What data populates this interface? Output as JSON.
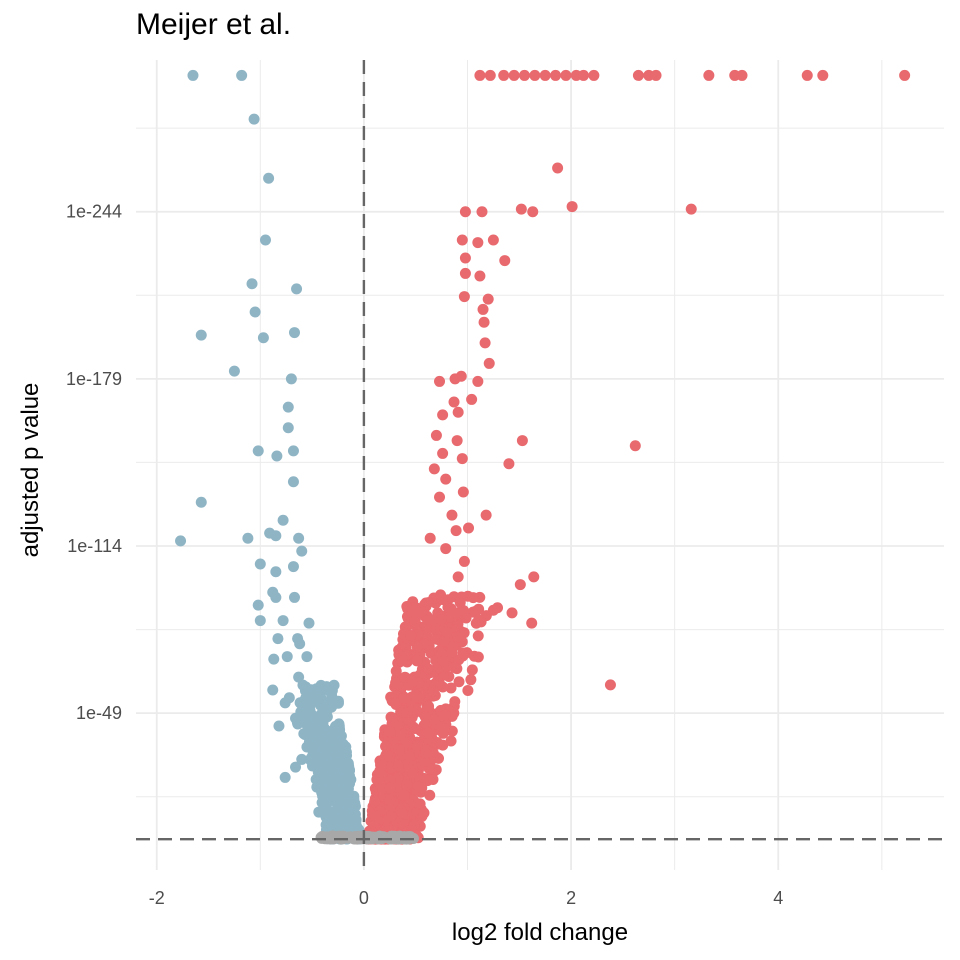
{
  "chart_data": {
    "type": "scatter",
    "title": "Meijer et al.",
    "xlabel": "log2 fold change",
    "ylabel": "adjusted p value",
    "xlim": [
      -2.2,
      5.6
    ],
    "ylim_neglog10": [
      -12,
      303
    ],
    "x_ticks": [
      -2,
      0,
      2,
      4
    ],
    "x_tick_labels": [
      "-2",
      "0",
      "2",
      "4"
    ],
    "y_ticks_neglog10": [
      49,
      114,
      179,
      244
    ],
    "y_tick_labels": [
      "1e-49",
      "1e-114",
      "1e-179",
      "1e-244"
    ],
    "grid": true,
    "reference_lines": {
      "vline_x": 0,
      "hline_neglog10": 0,
      "style": "dashed",
      "color": "#666666"
    },
    "colors": {
      "down": "#8fb5c5",
      "up": "#e8696e",
      "ns": "#a8a8a8"
    },
    "series": [
      {
        "group": "down",
        "points": [
          [
            -1.65,
            297
          ],
          [
            -1.18,
            297
          ],
          [
            -1.06,
            280
          ],
          [
            -0.92,
            257
          ],
          [
            -0.95,
            233
          ],
          [
            -1.08,
            216
          ],
          [
            -0.65,
            214
          ],
          [
            -1.05,
            205
          ],
          [
            -1.57,
            196
          ],
          [
            -0.67,
            197
          ],
          [
            -0.97,
            195
          ],
          [
            -1.25,
            182
          ],
          [
            -0.7,
            179
          ],
          [
            -0.73,
            168
          ],
          [
            -0.73,
            160
          ],
          [
            -1.02,
            151
          ],
          [
            -0.84,
            149
          ],
          [
            -0.68,
            151
          ],
          [
            -0.68,
            139
          ],
          [
            -1.57,
            131
          ],
          [
            -0.78,
            124
          ],
          [
            -1.77,
            116
          ],
          [
            -1.12,
            117
          ],
          [
            -0.85,
            118
          ],
          [
            -0.91,
            119
          ],
          [
            -0.63,
            117
          ],
          [
            -0.6,
            112
          ],
          [
            -1.0,
            107
          ],
          [
            -0.68,
            106
          ],
          [
            -0.85,
            104
          ],
          [
            -1.02,
            91
          ],
          [
            -0.85,
            94
          ],
          [
            -0.88,
            96
          ],
          [
            -0.67,
            94
          ],
          [
            -1.0,
            85
          ],
          [
            -0.78,
            85
          ],
          [
            -0.53,
            84
          ],
          [
            -0.62,
            76
          ],
          [
            -0.83,
            78
          ],
          [
            -0.64,
            78
          ],
          [
            -0.87,
            70
          ],
          [
            -0.74,
            71
          ],
          [
            -0.55,
            71
          ],
          [
            -0.88,
            58
          ],
          [
            -0.63,
            63
          ],
          [
            -0.76,
            53
          ],
          [
            -0.72,
            55
          ],
          [
            -0.56,
            55
          ],
          [
            -0.52,
            52
          ],
          [
            -0.82,
            44
          ],
          [
            -0.66,
            47
          ],
          [
            -0.43,
            42
          ],
          [
            -0.58,
            41
          ],
          [
            -0.5,
            36
          ],
          [
            -0.44,
            26
          ],
          [
            -0.76,
            24
          ],
          [
            -0.66,
            28
          ],
          [
            -0.6,
            31
          ],
          [
            -0.4,
            18
          ],
          [
            -0.35,
            19
          ],
          [
            -0.42,
            20
          ]
        ]
      },
      {
        "group": "up",
        "points": [
          [
            1.12,
            297
          ],
          [
            1.22,
            297
          ],
          [
            1.35,
            297
          ],
          [
            1.45,
            297
          ],
          [
            1.55,
            297
          ],
          [
            1.65,
            297
          ],
          [
            1.75,
            297
          ],
          [
            1.85,
            297
          ],
          [
            1.95,
            297
          ],
          [
            2.05,
            297
          ],
          [
            2.12,
            297
          ],
          [
            2.22,
            297
          ],
          [
            2.65,
            297
          ],
          [
            2.75,
            297
          ],
          [
            2.82,
            297
          ],
          [
            3.33,
            297
          ],
          [
            3.58,
            297
          ],
          [
            3.65,
            297
          ],
          [
            4.28,
            297
          ],
          [
            4.43,
            297
          ],
          [
            5.22,
            297
          ],
          [
            1.87,
            261
          ],
          [
            2.01,
            246
          ],
          [
            3.16,
            245
          ],
          [
            1.52,
            245
          ],
          [
            1.63,
            244
          ],
          [
            0.98,
            244
          ],
          [
            1.14,
            244
          ],
          [
            0.95,
            233
          ],
          [
            1.1,
            232
          ],
          [
            1.25,
            233
          ],
          [
            0.98,
            226
          ],
          [
            1.36,
            225
          ],
          [
            0.98,
            220
          ],
          [
            1.12,
            219
          ],
          [
            0.97,
            211
          ],
          [
            1.2,
            210
          ],
          [
            1.15,
            206
          ],
          [
            1.16,
            201
          ],
          [
            1.17,
            193
          ],
          [
            1.21,
            185
          ],
          [
            0.94,
            180
          ],
          [
            0.88,
            179
          ],
          [
            1.1,
            178
          ],
          [
            0.73,
            178
          ],
          [
            0.87,
            170
          ],
          [
            1.04,
            171
          ],
          [
            0.91,
            166
          ],
          [
            0.76,
            165
          ],
          [
            0.7,
            157
          ],
          [
            0.9,
            155
          ],
          [
            1.53,
            155
          ],
          [
            2.62,
            153
          ],
          [
            0.76,
            150
          ],
          [
            1.4,
            146
          ],
          [
            0.95,
            148
          ],
          [
            0.68,
            144
          ],
          [
            0.79,
            140
          ],
          [
            0.73,
            133
          ],
          [
            0.96,
            135
          ],
          [
            1.18,
            126
          ],
          [
            0.85,
            126
          ],
          [
            0.89,
            120
          ],
          [
            1.01,
            121
          ],
          [
            0.64,
            117
          ],
          [
            0.79,
            113
          ],
          [
            0.97,
            108
          ],
          [
            0.91,
            102
          ],
          [
            1.64,
            102
          ],
          [
            1.51,
            99
          ],
          [
            0.74,
            95
          ],
          [
            0.93,
            92
          ],
          [
            1.62,
            84
          ],
          [
            1.25,
            89
          ],
          [
            1.29,
            90
          ],
          [
            1.43,
            88
          ],
          [
            2.38,
            60
          ]
        ]
      }
    ]
  }
}
